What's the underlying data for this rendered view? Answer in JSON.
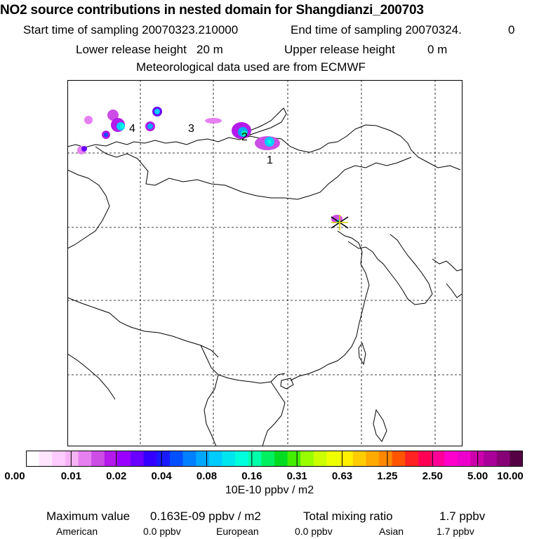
{
  "header": {
    "title": "NO2 source contributions in nested domain for Shangdianzi_200703",
    "start_label": "Start time of sampling 20070323.210000",
    "end_label": "End time of sampling 20070324.",
    "end_value": "0",
    "lower_label": "Lower release height",
    "lower_value": "20 m",
    "upper_label": "Upper release height",
    "upper_value": "0 m",
    "met": "Meteorological data used are from ECMWF"
  },
  "map": {
    "region_labels": [
      "4",
      "3",
      "2",
      "1"
    ],
    "station_marker": "star-icon"
  },
  "colorbar": {
    "tick_labels": [
      "0.00",
      "0.01",
      "0.02",
      "0.04",
      "0.08",
      "0.16",
      "0.31",
      "0.63",
      "1.25",
      "2.50",
      "5.00",
      "10.00"
    ],
    "units": "10E-10 ppbv / m2",
    "colors": [
      "#ffffff",
      "#ffe6ff",
      "#ffccff",
      "#f5b3f5",
      "#e680f0",
      "#cc4de6",
      "#b31aeb",
      "#9900ff",
      "#6a00ff",
      "#3300ff",
      "#1a1aff",
      "#0050ff",
      "#0080ff",
      "#00a8ff",
      "#00ccff",
      "#00e6ee",
      "#00ffdd",
      "#00ffaa",
      "#00f060",
      "#00dd20",
      "#44ee00",
      "#99ff00",
      "#ccff00",
      "#eeff00",
      "#ffee00",
      "#ffcc00",
      "#ffaa00",
      "#ff8800",
      "#ff5500",
      "#ff2222",
      "#ff0055",
      "#ff0099",
      "#ff00cc",
      "#ee00cc",
      "#cc00aa",
      "#aa0099",
      "#880077",
      "#550044"
    ]
  },
  "stats": {
    "max_label": "Maximum value",
    "max_value": "0.163E-09 ppbv / m2",
    "total_label": "Total mixing ratio",
    "total_value": "1.7 ppbv",
    "american_label": "American",
    "american_value": "0.0 ppbv",
    "european_label": "European",
    "european_value": "0.0 ppbv",
    "asian_label": "Asian",
    "asian_value": "1.7 ppbv"
  }
}
